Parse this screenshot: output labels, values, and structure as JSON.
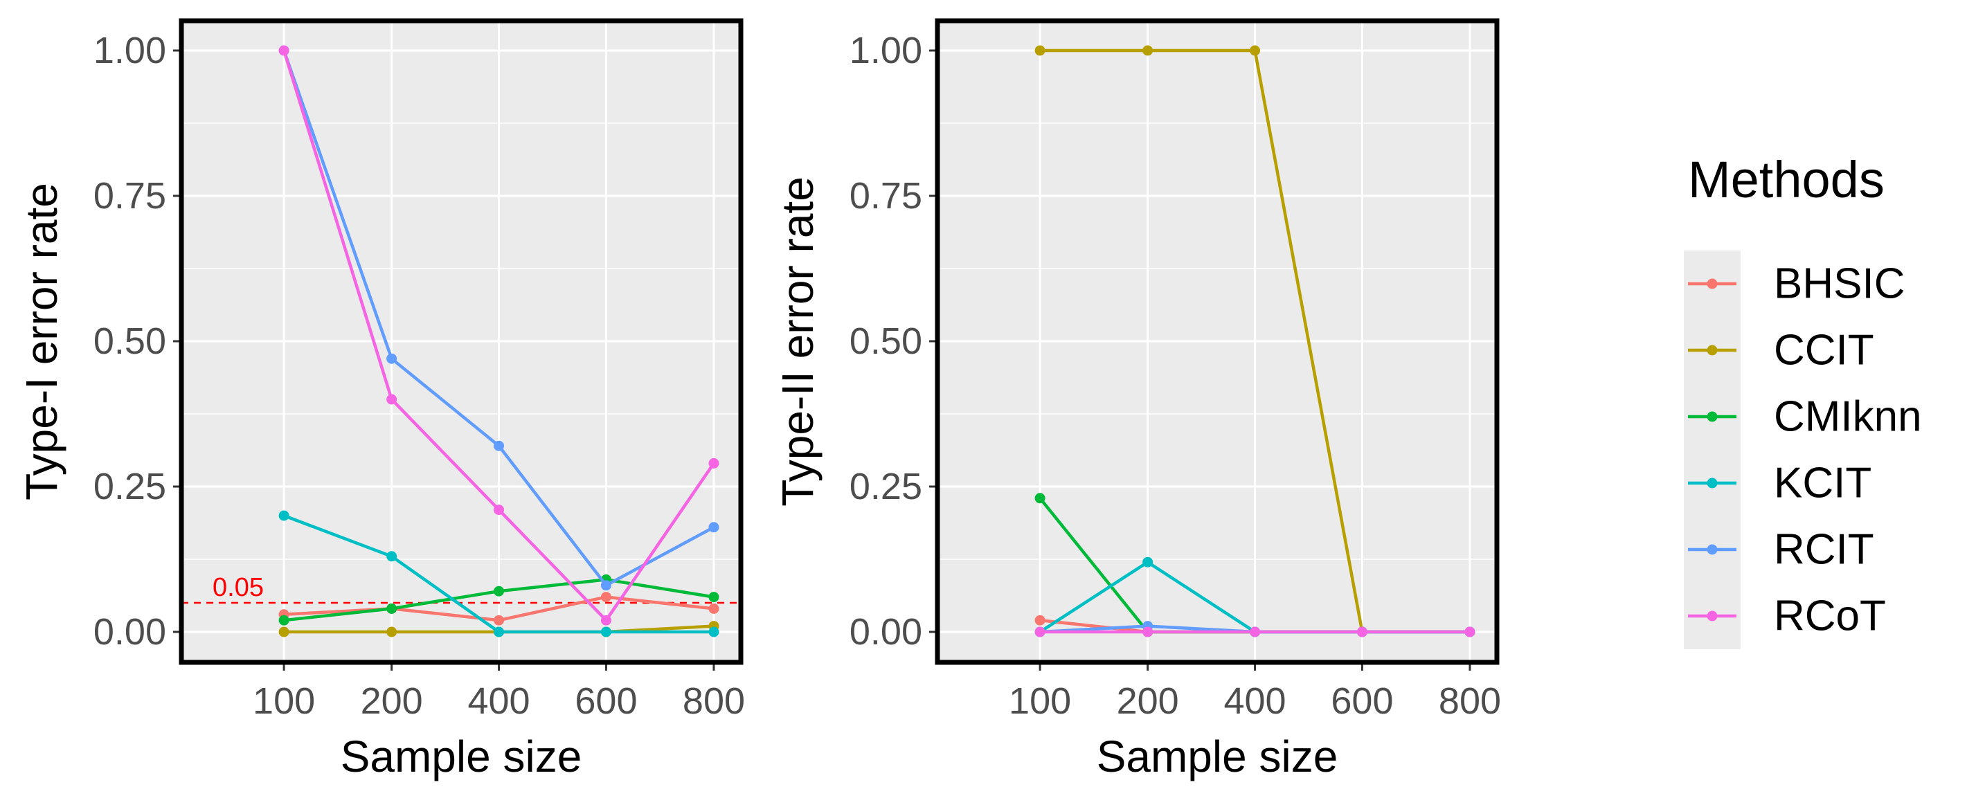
{
  "chart_data": [
    {
      "type": "line",
      "ylabel": "Type-I error rate",
      "xlabel": "Sample size",
      "categories": [
        "100",
        "200",
        "400",
        "600",
        "800"
      ],
      "yticks": [
        "0.00",
        "0.25",
        "0.50",
        "0.75",
        "1.00"
      ],
      "ylim": [
        0,
        1
      ],
      "reference_line": {
        "value": 0.05,
        "label": "0.05",
        "color": "#ff0000"
      },
      "series": [
        {
          "name": "BHSIC",
          "color": "#F8766D",
          "values": [
            0.03,
            0.04,
            0.02,
            0.06,
            0.04
          ]
        },
        {
          "name": "CCIT",
          "color": "#B79F00",
          "values": [
            0.0,
            0.0,
            0.0,
            0.0,
            0.01
          ]
        },
        {
          "name": "CMIknn",
          "color": "#00BA38",
          "values": [
            0.02,
            0.04,
            0.07,
            0.09,
            0.06
          ]
        },
        {
          "name": "KCIT",
          "color": "#00BFC4",
          "values": [
            0.2,
            0.13,
            0.0,
            0.0,
            0.0
          ]
        },
        {
          "name": "RCIT",
          "color": "#619CFF",
          "values": [
            1.0,
            0.47,
            0.32,
            0.08,
            0.18
          ]
        },
        {
          "name": "RCoT",
          "color": "#F564E3",
          "values": [
            1.0,
            0.4,
            0.21,
            0.02,
            0.29
          ]
        }
      ]
    },
    {
      "type": "line",
      "ylabel": "Type-II error rate",
      "xlabel": "Sample size",
      "categories": [
        "100",
        "200",
        "400",
        "600",
        "800"
      ],
      "yticks": [
        "0.00",
        "0.25",
        "0.50",
        "0.75",
        "1.00"
      ],
      "ylim": [
        0,
        1
      ],
      "series": [
        {
          "name": "BHSIC",
          "color": "#F8766D",
          "values": [
            0.02,
            0.0,
            0.0,
            0.0,
            0.0
          ]
        },
        {
          "name": "CCIT",
          "color": "#B79F00",
          "values": [
            1.0,
            1.0,
            1.0,
            0.0,
            0.0
          ]
        },
        {
          "name": "CMIknn",
          "color": "#00BA38",
          "values": [
            0.23,
            0.0,
            0.0,
            0.0,
            0.0
          ]
        },
        {
          "name": "KCIT",
          "color": "#00BFC4",
          "values": [
            0.0,
            0.12,
            0.0,
            0.0,
            0.0
          ]
        },
        {
          "name": "RCIT",
          "color": "#619CFF",
          "values": [
            0.0,
            0.01,
            0.0,
            0.0,
            0.0
          ]
        },
        {
          "name": "RCoT",
          "color": "#F564E3",
          "values": [
            0.0,
            0.0,
            0.0,
            0.0,
            0.0
          ]
        }
      ]
    }
  ],
  "legend": {
    "title": "Methods",
    "items": [
      {
        "label": "BHSIC",
        "color": "#F8766D"
      },
      {
        "label": "CCIT",
        "color": "#B79F00"
      },
      {
        "label": "CMIknn",
        "color": "#00BA38"
      },
      {
        "label": "KCIT",
        "color": "#00BFC4"
      },
      {
        "label": "RCIT",
        "color": "#619CFF"
      },
      {
        "label": "RCoT",
        "color": "#F564E3"
      }
    ]
  }
}
